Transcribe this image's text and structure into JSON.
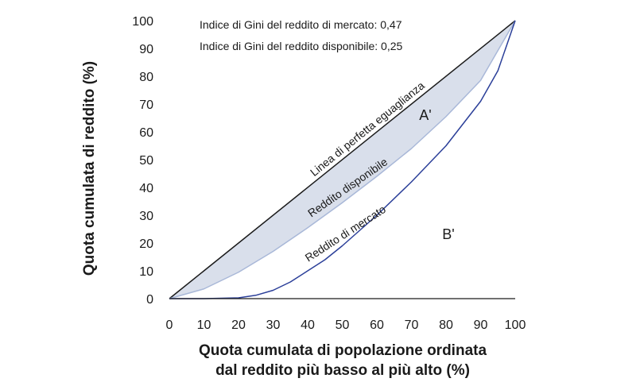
{
  "chart_data": {
    "type": "line",
    "xlabel_lines": [
      "Quota cumulata di popolazione ordinata",
      "dal reddito più basso al più alto (%)"
    ],
    "ylabel": "Quota cumulata di reddito (%)",
    "xlim": [
      0,
      100
    ],
    "ylim": [
      0,
      100
    ],
    "x_ticks": [
      "0",
      "10",
      "20",
      "30",
      "40",
      "50",
      "60",
      "70",
      "80",
      "90",
      "100"
    ],
    "y_ticks": [
      "0",
      "10",
      "20",
      "30",
      "40",
      "50",
      "60",
      "70",
      "80",
      "90",
      "100"
    ],
    "annotations": [
      "Indice di Gini del reddito di mercato: 0,47",
      "Indice di Gini del reddito disponibile: 0,25"
    ],
    "area_labels": [
      "A'",
      "B'"
    ],
    "series": [
      {
        "name": "Linea di perfetta eguaglianza",
        "color": "#1a1a1a",
        "x": [
          0,
          100
        ],
        "y": [
          0,
          100
        ]
      },
      {
        "name": "Reddito disponibile",
        "color": "#a9b8d8",
        "x": [
          0,
          10,
          20,
          30,
          40,
          50,
          60,
          70,
          80,
          90,
          100
        ],
        "y": [
          0,
          3.5,
          9.5,
          17,
          25.5,
          34.5,
          44,
          54,
          65.5,
          78.5,
          100
        ]
      },
      {
        "name": "Reddito di mercato",
        "color": "#2b3f99",
        "x": [
          0,
          10,
          20,
          25,
          30,
          35,
          40,
          45,
          50,
          60,
          70,
          80,
          90,
          95,
          100
        ],
        "y": [
          0,
          0,
          0.3,
          1.2,
          3,
          6,
          10,
          14,
          19,
          30,
          42,
          55,
          71,
          82,
          100
        ]
      }
    ],
    "fill_between": {
      "upper": "Linea di perfetta eguaglianza",
      "lower": "Reddito disponibile",
      "color": "#d9dfeb"
    }
  }
}
